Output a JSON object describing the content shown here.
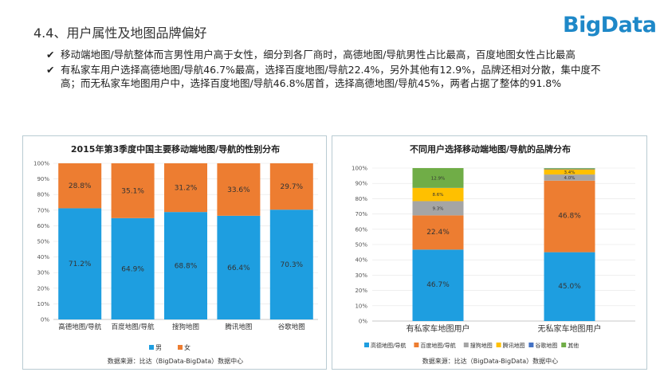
{
  "header": {
    "title": "4.4、用户属性及地图品牌偏好",
    "logo": "BigData"
  },
  "bullets": [
    "移动端地图/导航整体而言男性用户高于女性，细分到各厂商时，高德地图/导航男性占比最高，百度地图女性占比最高",
    "有私家车用户选择高德地图/导航46.7%最高，选择百度地图/导航22.4%，另外其他有12.9%，品牌还相对分散，集中度不高；而无私家车地图用户中，选择百度地图/导航46.8%居首，选择高德地图/导航45%，两者占据了整体的91.8%"
  ],
  "chart_data": [
    {
      "type": "bar",
      "stacked": true,
      "title": "2015年第3季度中国主要移动端地图/导航的性别分布",
      "categories": [
        "高德地图/导航",
        "百度地图/导航",
        "搜狗地图",
        "腾讯地图",
        "谷歌地图"
      ],
      "series": [
        {
          "name": "男",
          "color": "#1e9ee0",
          "values": [
            71.2,
            64.9,
            68.8,
            66.4,
            70.3
          ],
          "labels": [
            "71.2%",
            "64.9%",
            "68.8%",
            "66.4%",
            "70.3%"
          ]
        },
        {
          "name": "女",
          "color": "#ed7d31",
          "values": [
            28.8,
            35.1,
            31.2,
            33.6,
            29.7
          ],
          "labels": [
            "28.8%",
            "35.1%",
            "31.2%",
            "33.6%",
            "29.7%"
          ]
        }
      ],
      "ylim": [
        0,
        100
      ],
      "yticks": [
        "0%",
        "10%",
        "20%",
        "30%",
        "40%",
        "50%",
        "60%",
        "70%",
        "80%",
        "90%",
        "100%"
      ],
      "legend_position": "bottom",
      "source": "数据来源：比达（BigData-BigData）数据中心"
    },
    {
      "type": "bar",
      "stacked": true,
      "title": "不同用户选择移动端地图/导航的品牌分布",
      "categories": [
        "有私家车地图用户",
        "无私家车地图用户"
      ],
      "series": [
        {
          "name": "高德地图/导航",
          "color": "#1e9ee0",
          "values": [
            46.7,
            45.0
          ],
          "labels": [
            "46.7%",
            "45.0%"
          ]
        },
        {
          "name": "百度地图/导航",
          "color": "#ed7d31",
          "values": [
            22.4,
            46.8
          ],
          "labels": [
            "22.4%",
            "46.8%"
          ]
        },
        {
          "name": "搜狗地图",
          "color": "#a5a5a5",
          "values": [
            9.3,
            4.0
          ],
          "labels": [
            "9.3%",
            "4.0%"
          ]
        },
        {
          "name": "腾讯地图",
          "color": "#ffc000",
          "values": [
            8.6,
            3.4
          ],
          "labels": [
            "8.6%",
            "3.4%"
          ]
        },
        {
          "name": "谷歌地图",
          "color": "#4472c4",
          "values": [
            0.1,
            0.4
          ],
          "labels": [
            "",
            ""
          ]
        },
        {
          "name": "其他",
          "color": "#70ad47",
          "values": [
            12.9,
            0.4
          ],
          "labels": [
            "12.9%",
            ""
          ]
        }
      ],
      "ylim": [
        0,
        100
      ],
      "yticks": [
        "0%",
        "10%",
        "20%",
        "30%",
        "40%",
        "50%",
        "60%",
        "70%",
        "80%",
        "90%",
        "100%"
      ],
      "legend_position": "bottom",
      "source": "数据来源：比达（BigData-BigData）数据中心"
    }
  ]
}
